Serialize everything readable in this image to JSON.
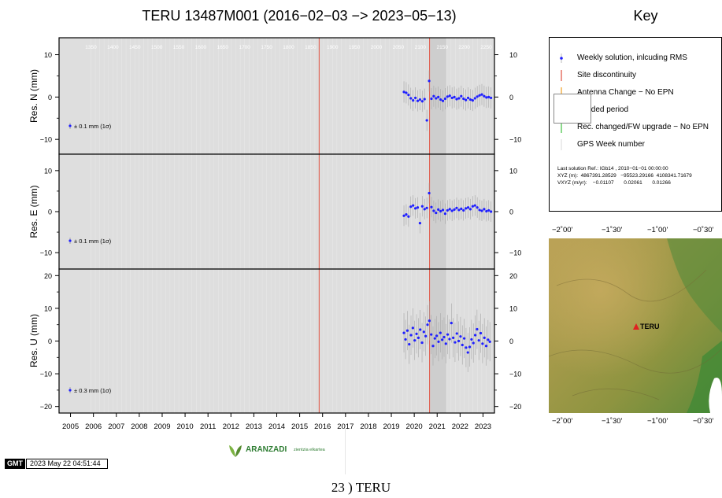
{
  "title": "TERU 13487M001 (2016−02−03 −> 2023−05−13)",
  "key": {
    "title": "Key",
    "items": [
      {
        "label": "Weekly solution, inlcuding RMS",
        "color": "#1f1fff"
      },
      {
        "label": "Site discontinuity",
        "color": "#e05040"
      },
      {
        "label": "Antenna Change − No EPN",
        "color": "#f0a020"
      },
      {
        "label": "xcluded period",
        "color": "#c8c8c8"
      },
      {
        "label": "Rec. changed/FW upgrade − No EPN",
        "color": "#40c040"
      },
      {
        "label": "GPS Week number",
        "color": "#d0d0d0"
      }
    ],
    "solution_line1": "Last solution Ref.: IGb14 , 2010−01−01 00:00:00",
    "solution_line2": "XYZ (m):  4867391.28529   −95523.29166  4108341.71679",
    "solution_line3": "VXYZ (m/yr):    −0.01107       0.02061       0.01266"
  },
  "map": {
    "x_ticks": [
      "−2˚00'",
      "−1˚30'",
      "−1˚00'",
      "−0˚30'"
    ],
    "station": "TERU"
  },
  "footer": {
    "gmt_logo": "GMT",
    "timestamp": "2023 May 22 04:51:44",
    "aranzadi": "ARANZADI",
    "aranzadi_sub": "zientzia elkartea"
  },
  "caption": "23 ) TERU",
  "chart_data": {
    "type": "scatter",
    "x_range": [
      2004.5,
      2023.5
    ],
    "x_ticks": [
      2005,
      2006,
      2007,
      2008,
      2009,
      2010,
      2011,
      2012,
      2013,
      2014,
      2015,
      2016,
      2017,
      2018,
      2019,
      2020,
      2021,
      2022,
      2023
    ],
    "gps_week_ticks": [
      1350,
      1400,
      1450,
      1500,
      1550,
      1600,
      1650,
      1700,
      1750,
      1800,
      1850,
      1900,
      1950,
      2000,
      2050,
      2100,
      2150,
      2200,
      2250
    ],
    "discontinuities": [
      2015.85,
      2020.67
    ],
    "excluded_band": [
      2020.7,
      2021.4
    ],
    "panels": [
      {
        "ylabel": "Res. N (mm)",
        "ylim": [
          -13.5,
          14
        ],
        "yticks": [
          -10,
          0,
          10
        ],
        "scale_label": "± 0.1 mm (1σ)",
        "series": [
          {
            "x": 2019.55,
            "y": 1.2
          },
          {
            "x": 2019.65,
            "y": 1.0
          },
          {
            "x": 2019.75,
            "y": 0.5
          },
          {
            "x": 2019.85,
            "y": -0.3
          },
          {
            "x": 2019.95,
            "y": -0.8
          },
          {
            "x": 2020.05,
            "y": -0.2
          },
          {
            "x": 2020.15,
            "y": -0.9
          },
          {
            "x": 2020.25,
            "y": -0.6
          },
          {
            "x": 2020.35,
            "y": -1.0
          },
          {
            "x": 2020.45,
            "y": -0.5
          },
          {
            "x": 2020.55,
            "y": -5.5
          },
          {
            "x": 2020.65,
            "y": 3.8
          },
          {
            "x": 2020.75,
            "y": -0.4
          },
          {
            "x": 2020.85,
            "y": 0.2
          },
          {
            "x": 2020.95,
            "y": -0.3
          },
          {
            "x": 2021.05,
            "y": 0.0
          },
          {
            "x": 2021.15,
            "y": -0.6
          },
          {
            "x": 2021.25,
            "y": -0.9
          },
          {
            "x": 2021.35,
            "y": -0.4
          },
          {
            "x": 2021.45,
            "y": 0.1
          },
          {
            "x": 2021.55,
            "y": 0.3
          },
          {
            "x": 2021.65,
            "y": -0.2
          },
          {
            "x": 2021.75,
            "y": 0.0
          },
          {
            "x": 2021.85,
            "y": -0.5
          },
          {
            "x": 2021.95,
            "y": -0.3
          },
          {
            "x": 2022.05,
            "y": 0.2
          },
          {
            "x": 2022.15,
            "y": -0.4
          },
          {
            "x": 2022.25,
            "y": -0.7
          },
          {
            "x": 2022.35,
            "y": -0.2
          },
          {
            "x": 2022.45,
            "y": -0.6
          },
          {
            "x": 2022.55,
            "y": -0.8
          },
          {
            "x": 2022.65,
            "y": -0.3
          },
          {
            "x": 2022.75,
            "y": 0.1
          },
          {
            "x": 2022.85,
            "y": 0.4
          },
          {
            "x": 2022.95,
            "y": 0.6
          },
          {
            "x": 2023.05,
            "y": 0.2
          },
          {
            "x": 2023.15,
            "y": -0.1
          },
          {
            "x": 2023.25,
            "y": 0.0
          },
          {
            "x": 2023.35,
            "y": -0.2
          }
        ]
      },
      {
        "ylabel": "Res. E (mm)",
        "ylim": [
          -14,
          14
        ],
        "yticks": [
          -10,
          0,
          10
        ],
        "scale_label": "± 0.1 mm (1σ)",
        "series": [
          {
            "x": 2019.55,
            "y": -1.0
          },
          {
            "x": 2019.65,
            "y": -0.7
          },
          {
            "x": 2019.75,
            "y": -1.2
          },
          {
            "x": 2019.85,
            "y": 1.2
          },
          {
            "x": 2019.95,
            "y": 1.5
          },
          {
            "x": 2020.05,
            "y": 0.8
          },
          {
            "x": 2020.15,
            "y": 1.0
          },
          {
            "x": 2020.25,
            "y": -2.8
          },
          {
            "x": 2020.35,
            "y": 1.3
          },
          {
            "x": 2020.45,
            "y": 0.6
          },
          {
            "x": 2020.55,
            "y": 0.9
          },
          {
            "x": 2020.65,
            "y": 4.5
          },
          {
            "x": 2020.75,
            "y": 1.1
          },
          {
            "x": 2020.85,
            "y": 0.2
          },
          {
            "x": 2020.95,
            "y": -0.3
          },
          {
            "x": 2021.05,
            "y": 0.5
          },
          {
            "x": 2021.15,
            "y": 0.1
          },
          {
            "x": 2021.25,
            "y": 0.4
          },
          {
            "x": 2021.35,
            "y": -0.5
          },
          {
            "x": 2021.45,
            "y": 0.3
          },
          {
            "x": 2021.55,
            "y": 0.6
          },
          {
            "x": 2021.65,
            "y": 0.2
          },
          {
            "x": 2021.75,
            "y": 0.5
          },
          {
            "x": 2021.85,
            "y": 0.9
          },
          {
            "x": 2021.95,
            "y": 0.4
          },
          {
            "x": 2022.05,
            "y": 0.7
          },
          {
            "x": 2022.15,
            "y": 0.3
          },
          {
            "x": 2022.25,
            "y": 0.8
          },
          {
            "x": 2022.35,
            "y": 1.0
          },
          {
            "x": 2022.45,
            "y": 0.6
          },
          {
            "x": 2022.55,
            "y": 1.3
          },
          {
            "x": 2022.65,
            "y": 1.5
          },
          {
            "x": 2022.75,
            "y": 1.0
          },
          {
            "x": 2022.85,
            "y": 0.4
          },
          {
            "x": 2022.95,
            "y": 0.2
          },
          {
            "x": 2023.05,
            "y": 0.6
          },
          {
            "x": 2023.15,
            "y": 0.1
          },
          {
            "x": 2023.25,
            "y": 0.3
          },
          {
            "x": 2023.35,
            "y": 0.0
          }
        ]
      },
      {
        "ylabel": "Res. U (mm)",
        "ylim": [
          -22,
          22
        ],
        "yticks": [
          -20,
          -10,
          0,
          10,
          20
        ],
        "scale_label": "± 0.3 mm (1σ)",
        "series": [
          {
            "x": 2019.55,
            "y": 2.5
          },
          {
            "x": 2019.62,
            "y": 0.5
          },
          {
            "x": 2019.7,
            "y": 3.2
          },
          {
            "x": 2019.78,
            "y": -1.0
          },
          {
            "x": 2019.86,
            "y": 1.8
          },
          {
            "x": 2019.94,
            "y": 4.0
          },
          {
            "x": 2020.02,
            "y": 0.2
          },
          {
            "x": 2020.1,
            "y": 2.2
          },
          {
            "x": 2020.18,
            "y": 1.0
          },
          {
            "x": 2020.26,
            "y": 3.5
          },
          {
            "x": 2020.34,
            "y": -0.5
          },
          {
            "x": 2020.42,
            "y": 2.8
          },
          {
            "x": 2020.5,
            "y": 1.5
          },
          {
            "x": 2020.58,
            "y": 5.0
          },
          {
            "x": 2020.66,
            "y": 6.2
          },
          {
            "x": 2020.74,
            "y": 2.0
          },
          {
            "x": 2020.82,
            "y": -1.5
          },
          {
            "x": 2020.9,
            "y": 0.8
          },
          {
            "x": 2020.98,
            "y": 1.6
          },
          {
            "x": 2021.06,
            "y": -0.2
          },
          {
            "x": 2021.14,
            "y": 2.5
          },
          {
            "x": 2021.22,
            "y": 0.4
          },
          {
            "x": 2021.3,
            "y": 1.2
          },
          {
            "x": 2021.38,
            "y": -0.8
          },
          {
            "x": 2021.46,
            "y": 2.0
          },
          {
            "x": 2021.54,
            "y": 0.6
          },
          {
            "x": 2021.62,
            "y": 5.5
          },
          {
            "x": 2021.7,
            "y": 1.0
          },
          {
            "x": 2021.78,
            "y": -0.4
          },
          {
            "x": 2021.86,
            "y": 2.3
          },
          {
            "x": 2021.94,
            "y": 0.0
          },
          {
            "x": 2022.02,
            "y": 1.4
          },
          {
            "x": 2022.1,
            "y": -1.2
          },
          {
            "x": 2022.18,
            "y": 0.8
          },
          {
            "x": 2022.26,
            "y": -2.0
          },
          {
            "x": 2022.34,
            "y": -3.5
          },
          {
            "x": 2022.42,
            "y": -1.8
          },
          {
            "x": 2022.5,
            "y": 0.5
          },
          {
            "x": 2022.58,
            "y": -0.6
          },
          {
            "x": 2022.66,
            "y": 1.8
          },
          {
            "x": 2022.74,
            "y": 3.6
          },
          {
            "x": 2022.82,
            "y": 0.2
          },
          {
            "x": 2022.9,
            "y": 2.4
          },
          {
            "x": 2022.98,
            "y": -0.8
          },
          {
            "x": 2023.06,
            "y": 1.0
          },
          {
            "x": 2023.14,
            "y": -1.5
          },
          {
            "x": 2023.22,
            "y": 0.4
          },
          {
            "x": 2023.3,
            "y": -0.2
          }
        ]
      }
    ]
  }
}
